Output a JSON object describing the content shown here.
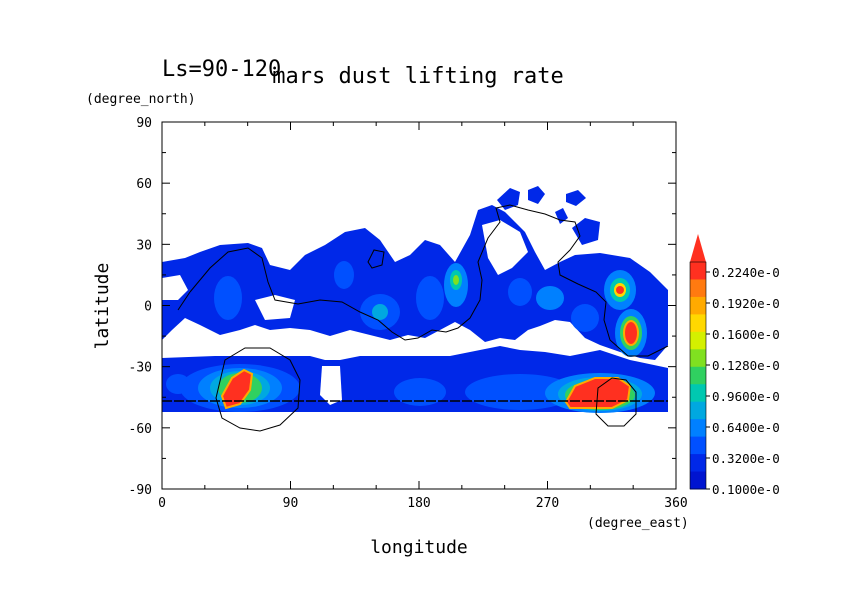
{
  "chart_data": {
    "type": "heatmap",
    "title": "mars dust lifting rate",
    "subtitle": "Ls=90-120",
    "xlabel": "longitude",
    "ylabel": "latitude",
    "x_unit": "(degree_east)",
    "y_unit": "(degree_north)",
    "xlim": [
      0,
      360
    ],
    "ylim": [
      -90,
      90
    ],
    "x_ticks": [
      "0",
      "90",
      "180",
      "270",
      "360"
    ],
    "y_ticks": [
      "90",
      "60",
      "30",
      "0",
      "-30",
      "-60",
      "-90"
    ],
    "x_tick_values": [
      0,
      90,
      180,
      270,
      360
    ],
    "y_tick_values": [
      90,
      60,
      30,
      0,
      -30,
      -60,
      -90
    ],
    "colorbar": {
      "levels": [
        0.1,
        0.132,
        0.164,
        0.196,
        0.228
      ],
      "labels": [
        "0.2240e-0",
        "0.1920e-0",
        "0.1600e-0",
        "0.1280e-0",
        "0.9600e-0",
        "0.6400e-0",
        "0.3200e-0",
        "0.1000e-0"
      ],
      "colors": [
        "#ff3020",
        "#ff7a10",
        "#ffaa00",
        "#ffd800",
        "#d4f000",
        "#80e020",
        "#30d060",
        "#00c8b0",
        "#00a8e0",
        "#0080ff",
        "#0050ff",
        "#0028e8",
        "#0014d0"
      ]
    },
    "hotspots": [
      {
        "lon": 50,
        "lat": -42,
        "level": 0.23
      },
      {
        "lon": 295,
        "lat": -47,
        "level": 0.23
      },
      {
        "lon": 325,
        "lat": -18,
        "level": 0.23
      },
      {
        "lon": 322,
        "lat": 8,
        "level": 0.2
      },
      {
        "lon": 205,
        "lat": 15,
        "level": 0.14
      }
    ]
  }
}
